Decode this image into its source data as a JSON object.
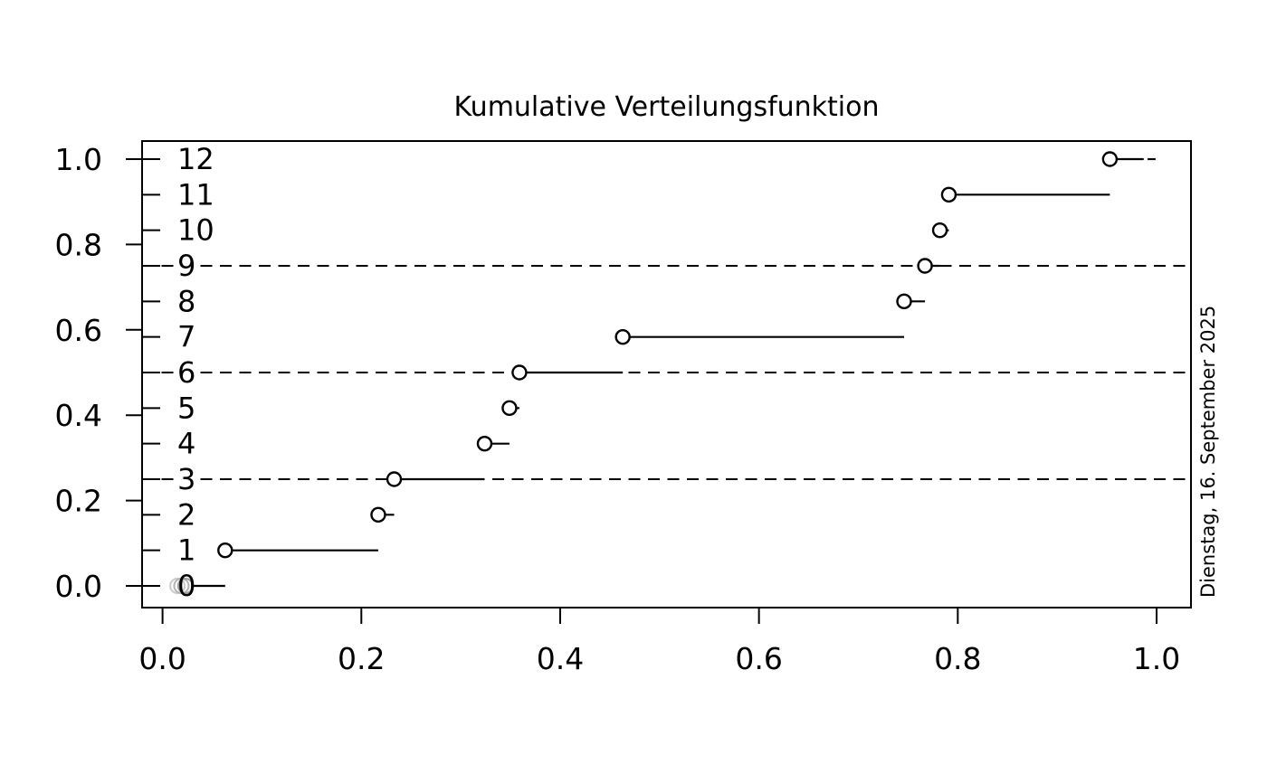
{
  "title": "Kumulative Verteilungsfunktion",
  "margin_date": "Dienstag, 16. September 2025",
  "chart_data": {
    "type": "line",
    "subtype": "ecdf-step",
    "title": "Kumulative Verteilungsfunktion",
    "xlabel": "",
    "ylabel": "",
    "xlim": [
      -0.021,
      1.035
    ],
    "ylim": [
      -0.017,
      1.017
    ],
    "grid": false,
    "x_tick_values": [
      0.0,
      0.2,
      0.4,
      0.6,
      0.8,
      1.0
    ],
    "x_tick_labels": [
      "0.0",
      "0.2",
      "0.4",
      "0.6",
      "0.8",
      "1.0"
    ],
    "y_tick_values": [
      0.0,
      0.2,
      0.4,
      0.6,
      0.8,
      1.0
    ],
    "y_tick_labels": [
      "0.0",
      "0.2",
      "0.4",
      "0.6",
      "0.8",
      "1.0"
    ],
    "n_steps": 12,
    "level_labels": [
      "0",
      "1",
      "2",
      "3",
      "4",
      "5",
      "6",
      "7",
      "8",
      "9",
      "10",
      "11",
      "12"
    ],
    "level_values": [
      0,
      0.0833,
      0.1667,
      0.25,
      0.3333,
      0.4167,
      0.5,
      0.5833,
      0.6667,
      0.75,
      0.8333,
      0.9167,
      1.0
    ],
    "haloed_level_labels": [
      3,
      6,
      9
    ],
    "jump_x": [
      0.063,
      0.217,
      0.233,
      0.324,
      0.349,
      0.359,
      0.463,
      0.746,
      0.767,
      0.782,
      0.791,
      0.953
    ],
    "quartile_dashed_y": [
      0.25,
      0.5,
      0.75
    ],
    "grey_point_x": [
      0.015,
      0.019,
      0.023
    ],
    "grey_point_y": 0,
    "level0_line_start_x": 0.031,
    "last_segment_solid_end_x": 0.987,
    "last_segment_dash_x": [
      0.991,
      0.999
    ],
    "colors": {
      "line": "#000000",
      "point_stroke": "#000000",
      "point_fill": "#ffffff",
      "grey_points": [
        "#c9c9c9",
        "#b3b3b3",
        "#9c9c9c"
      ],
      "dashed_line": "#000000"
    }
  }
}
